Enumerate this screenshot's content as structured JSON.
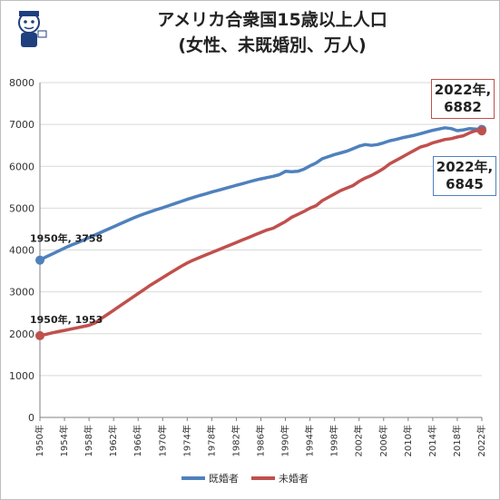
{
  "title_line1": "アメリカ合衆国15歳以上人口",
  "title_line2": "(女性、未既婚別、万人)",
  "legend": {
    "married": "既婚者",
    "unmarried": "未婚者"
  },
  "callouts": {
    "married_end": {
      "line1": "2022年,",
      "line2": "6882"
    },
    "unmarried_end": {
      "line1": "2022年,",
      "line2": "6845"
    }
  },
  "annotations": {
    "married_start": "1950年, 3758",
    "unmarried_start": "1950年, 1953"
  },
  "colors": {
    "married": "#4f81bd",
    "unmarried": "#c0504d",
    "grid": "#d9d9d9",
    "axis": "#808080"
  },
  "chart_data": {
    "type": "line",
    "xlabel": "",
    "ylabel": "",
    "ylim": [
      0,
      8000
    ],
    "yticks": [
      0,
      1000,
      2000,
      3000,
      4000,
      5000,
      6000,
      7000,
      8000
    ],
    "xtick_labels": [
      "1950年",
      "1954年",
      "1958年",
      "1962年",
      "1966年",
      "1970年",
      "1974年",
      "1978年",
      "1982年",
      "1986年",
      "1990年",
      "1994年",
      "1998年",
      "2002年",
      "2006年",
      "2010年",
      "2014年",
      "2018年",
      "2022年"
    ],
    "grid": true,
    "legend_position": "bottom",
    "x": [
      1950,
      1951,
      1952,
      1953,
      1954,
      1955,
      1956,
      1957,
      1958,
      1959,
      1960,
      1961,
      1962,
      1963,
      1964,
      1965,
      1966,
      1967,
      1968,
      1969,
      1970,
      1971,
      1972,
      1973,
      1974,
      1975,
      1976,
      1977,
      1978,
      1979,
      1980,
      1981,
      1982,
      1983,
      1984,
      1985,
      1986,
      1987,
      1988,
      1989,
      1990,
      1991,
      1992,
      1993,
      1994,
      1995,
      1996,
      1997,
      1998,
      1999,
      2000,
      2001,
      2002,
      2003,
      2004,
      2005,
      2006,
      2007,
      2008,
      2009,
      2010,
      2011,
      2012,
      2013,
      2014,
      2015,
      2016,
      2017,
      2018,
      2019,
      2020,
      2021,
      2022
    ],
    "series": [
      {
        "name": "既婚者",
        "values": [
          3758,
          3835,
          3905,
          3975,
          4045,
          4110,
          4170,
          4230,
          4295,
          4360,
          4425,
          4490,
          4555,
          4620,
          4685,
          4750,
          4810,
          4865,
          4915,
          4965,
          5010,
          5060,
          5110,
          5160,
          5210,
          5255,
          5300,
          5340,
          5385,
          5425,
          5465,
          5505,
          5545,
          5585,
          5625,
          5665,
          5700,
          5730,
          5760,
          5800,
          5880,
          5870,
          5880,
          5930,
          6010,
          6080,
          6180,
          6230,
          6280,
          6320,
          6360,
          6420,
          6480,
          6520,
          6500,
          6520,
          6560,
          6610,
          6640,
          6680,
          6710,
          6740,
          6780,
          6820,
          6860,
          6890,
          6920,
          6900,
          6850,
          6870,
          6900,
          6890,
          6882
        ]
      },
      {
        "name": "未婚者",
        "values": [
          1953,
          1985,
          2020,
          2050,
          2080,
          2110,
          2140,
          2170,
          2200,
          2260,
          2360,
          2460,
          2560,
          2660,
          2760,
          2860,
          2960,
          3060,
          3160,
          3250,
          3340,
          3430,
          3520,
          3610,
          3690,
          3760,
          3820,
          3880,
          3940,
          4000,
          4060,
          4120,
          4180,
          4240,
          4300,
          4360,
          4420,
          4480,
          4520,
          4600,
          4680,
          4780,
          4850,
          4920,
          5000,
          5060,
          5180,
          5260,
          5340,
          5420,
          5480,
          5540,
          5640,
          5720,
          5780,
          5860,
          5950,
          6060,
          6140,
          6220,
          6300,
          6380,
          6460,
          6500,
          6560,
          6600,
          6640,
          6660,
          6700,
          6730,
          6800,
          6850,
          6845
        ]
      }
    ]
  }
}
